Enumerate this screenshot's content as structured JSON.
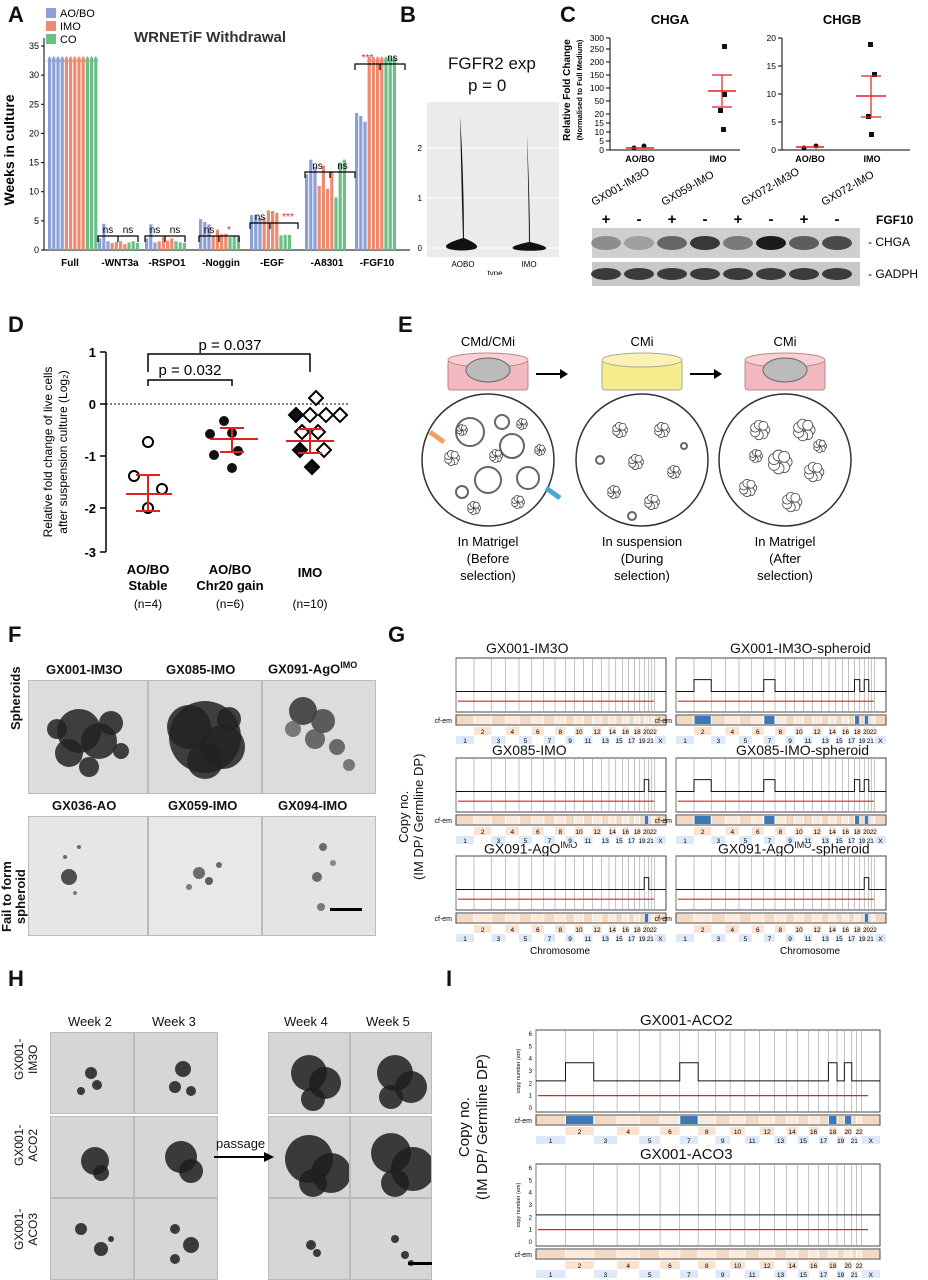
{
  "panels": {
    "A": {
      "label": "A",
      "title": "WRNETiF Withdrawal",
      "ylabel": "Weeks in culture",
      "legend": [
        "AO/BO",
        "IMO",
        "CO"
      ],
      "colors": {
        "AOBO": "#8e9fd6",
        "IMO": "#ee8a6f",
        "CO": "#6cbf86"
      },
      "yticks": [
        "0",
        "5",
        "10",
        "15",
        "20",
        "25",
        "30",
        "35"
      ],
      "groups": [
        "Full",
        "-WNT3a",
        "-RSPO1",
        "-Noggin",
        "-EGF",
        "-A8301",
        "-FGF10"
      ],
      "sig": [
        "ns",
        "ns",
        "ns",
        "ns",
        "ns",
        "ns",
        "*",
        "ns",
        "***",
        "ns",
        "ns",
        "***",
        "ns"
      ]
    },
    "B": {
      "label": "B",
      "title1": "FGFR2 exp",
      "title2": "p = 0",
      "ylabel": "exp",
      "xlabel": "type",
      "yticks": [
        "0",
        "1",
        "2"
      ],
      "xticks": [
        "AOBO",
        "IMO"
      ]
    },
    "C": {
      "label": "C",
      "chga_title": "CHGA",
      "chgb_title": "CHGB",
      "ylabel1": "Relative Fold Change",
      "ylabel2": "(Normalised to Full Medium)",
      "chga_yticks": [
        "0",
        "5",
        "10",
        "15",
        "20",
        "50",
        "100",
        "150",
        "200",
        "250",
        "300"
      ],
      "chgb_yticks": [
        "0",
        "5",
        "10",
        "15",
        "20"
      ],
      "xticks": [
        "AO/BO",
        "IMO"
      ],
      "lanes": [
        "GX001-IM3O",
        "GX059-IMO",
        "GX072-IM3O",
        "GX072-IMO"
      ],
      "signs": [
        "+",
        "-",
        "+",
        "-",
        "+",
        "-",
        "+",
        "-"
      ],
      "fgf10": "FGF10",
      "band1": "- CHGA",
      "band2": "- GADPH"
    },
    "D": {
      "label": "D",
      "ylabel1": "Relative fold change of live cells",
      "ylabel2": "after suspension culture (Log₂)",
      "yticks": [
        "1",
        "0",
        "-1",
        "-2",
        "-3"
      ],
      "p1": "p = 0.032",
      "p2": "p = 0.037",
      "groups": [
        {
          "l1": "AO/BO",
          "l2": "Stable",
          "n": "(n=4)"
        },
        {
          "l1": "AO/BO",
          "l2": "Chr20 gain",
          "n": "(n=6)"
        },
        {
          "l1": "IMO",
          "l2": "",
          "n": "(n=10)"
        }
      ]
    },
    "E": {
      "label": "E",
      "dish_titles": [
        "CMd/CMi",
        "CMi",
        "CMi"
      ],
      "captions": [
        [
          "In Matrigel",
          "(Before",
          "selection)"
        ],
        [
          "In suspension",
          "(During",
          "selection)"
        ],
        [
          "In Matrigel",
          "(After",
          "selection)"
        ]
      ]
    },
    "F": {
      "label": "F",
      "row1": "Spheroids",
      "row2a": "Fail to form",
      "row2b": "spheroid",
      "top": [
        "GX001-IM3O",
        "GX085-IMO",
        "GX091-AgO"
      ],
      "top_sup": "IMO",
      "bottom": [
        "GX036-AO",
        "GX059-IMO",
        "GX094-IMO"
      ]
    },
    "G": {
      "label": "G",
      "ylabel1": "Copy no.",
      "ylabel2": "(IM DP/ Germline DP)",
      "titles": [
        "GX001-IM3O",
        "GX001-IM3O-spheroid",
        "GX085-IMO",
        "GX085-IMO-spheroid",
        "GX091-AgO",
        "GX091-AgO"
      ],
      "title_sup": "IMO",
      "title_suffix": "-spheroid",
      "xlabel": "Chromosome",
      "track": "cf-em",
      "chroms_top": [
        "2",
        "4",
        "6",
        "8",
        "10",
        "12",
        "14",
        "16",
        "18",
        "20",
        "22"
      ],
      "chroms_bottom": [
        "1",
        "3",
        "5",
        "7",
        "9",
        "11",
        "13",
        "15",
        "17",
        "19",
        "21",
        "X"
      ]
    },
    "H": {
      "label": "H",
      "weeks": [
        "Week 2",
        "Week 3",
        "Week 4",
        "Week 5"
      ],
      "rows": [
        [
          "GX001-",
          "IM3O"
        ],
        [
          "GX001-",
          "ACO2"
        ],
        [
          "GX001-",
          "ACO3"
        ]
      ],
      "passage": "passage"
    },
    "I": {
      "label": "I",
      "ylabel1": "Copy no.",
      "ylabel2": "(IM DP/ Germline DP)",
      "titles": [
        "GX001-ACO2",
        "GX001-ACO3"
      ],
      "axis_label": "copy number (em)",
      "yticks": [
        "0",
        "1",
        "2",
        "3",
        "4",
        "5",
        "6"
      ],
      "track": "cf-em",
      "chroms_top": [
        "2",
        "4",
        "6",
        "8",
        "10",
        "12",
        "14",
        "16",
        "18",
        "20",
        "22"
      ],
      "chroms_bottom": [
        "1",
        "3",
        "5",
        "7",
        "9",
        "11",
        "13",
        "15",
        "17",
        "19",
        "21",
        "X"
      ]
    }
  }
}
